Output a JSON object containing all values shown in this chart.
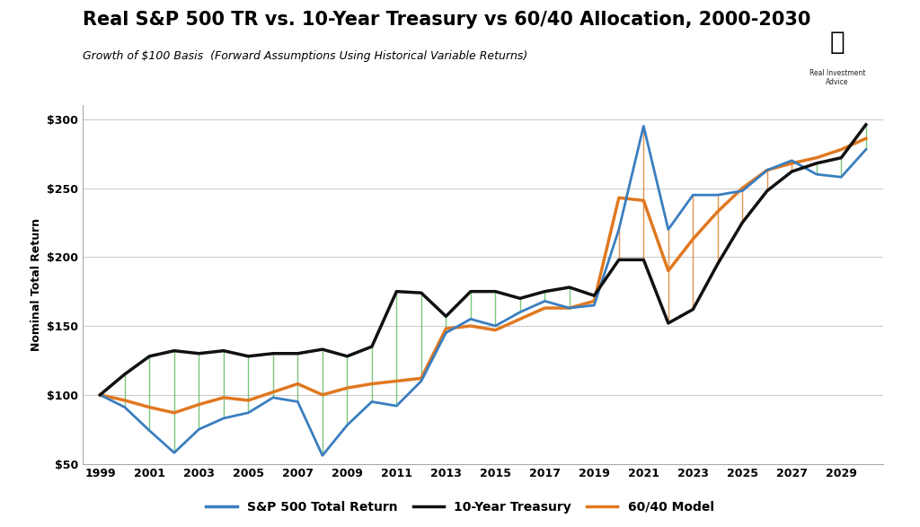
{
  "title": "Real S&P 500 TR vs. 10-Year Treasury vs 60/40 Allocation, 2000-2030",
  "subtitle": "Growth of $100 Basis  (Forward Assumptions Using Historical Variable Returns)",
  "ylabel": "Nominal Total Return",
  "background_color": "#ffffff",
  "grid_color": "#cccccc",
  "years": [
    1999,
    2000,
    2001,
    2002,
    2003,
    2004,
    2005,
    2006,
    2007,
    2008,
    2009,
    2010,
    2011,
    2012,
    2013,
    2014,
    2015,
    2016,
    2017,
    2018,
    2019,
    2020,
    2021,
    2022,
    2023,
    2024,
    2025,
    2026,
    2027,
    2028,
    2029,
    2030
  ],
  "sp500": [
    100,
    91,
    74,
    58,
    75,
    83,
    87,
    98,
    95,
    56,
    78,
    95,
    92,
    110,
    145,
    155,
    150,
    160,
    168,
    163,
    165,
    220,
    295,
    220,
    245,
    245,
    248,
    263,
    270,
    260,
    258,
    278
  ],
  "treasury": [
    100,
    115,
    128,
    132,
    130,
    132,
    128,
    130,
    130,
    133,
    128,
    135,
    175,
    174,
    157,
    175,
    175,
    170,
    175,
    178,
    172,
    198,
    198,
    152,
    162,
    195,
    225,
    248,
    262,
    268,
    272,
    296
  ],
  "model": [
    100,
    96,
    91,
    87,
    93,
    98,
    96,
    102,
    108,
    100,
    105,
    108,
    110,
    112,
    148,
    150,
    147,
    155,
    163,
    163,
    168,
    243,
    241,
    190,
    213,
    233,
    250,
    263,
    268,
    272,
    278,
    286
  ],
  "sp500_color": "#3a7ebf",
  "treasury_color": "#111111",
  "model_color": "#e07820",
  "vline_green": "#5cb85c",
  "vline_orange": "#e07820",
  "ylim": [
    50,
    310
  ],
  "yticks": [
    50,
    100,
    150,
    200,
    250,
    300
  ],
  "ytick_labels": [
    "$50",
    "$100",
    "$150",
    "$200",
    "$250",
    "$300"
  ],
  "xticks": [
    1999,
    2001,
    2003,
    2005,
    2007,
    2009,
    2011,
    2013,
    2015,
    2017,
    2019,
    2021,
    2023,
    2025,
    2027,
    2029
  ],
  "legend_labels": [
    "S&P 500 Total Return",
    "10-Year Treasury",
    "60/40 Model"
  ],
  "title_fontsize": 15,
  "subtitle_fontsize": 9,
  "tick_fontsize": 9,
  "legend_fontsize": 10
}
